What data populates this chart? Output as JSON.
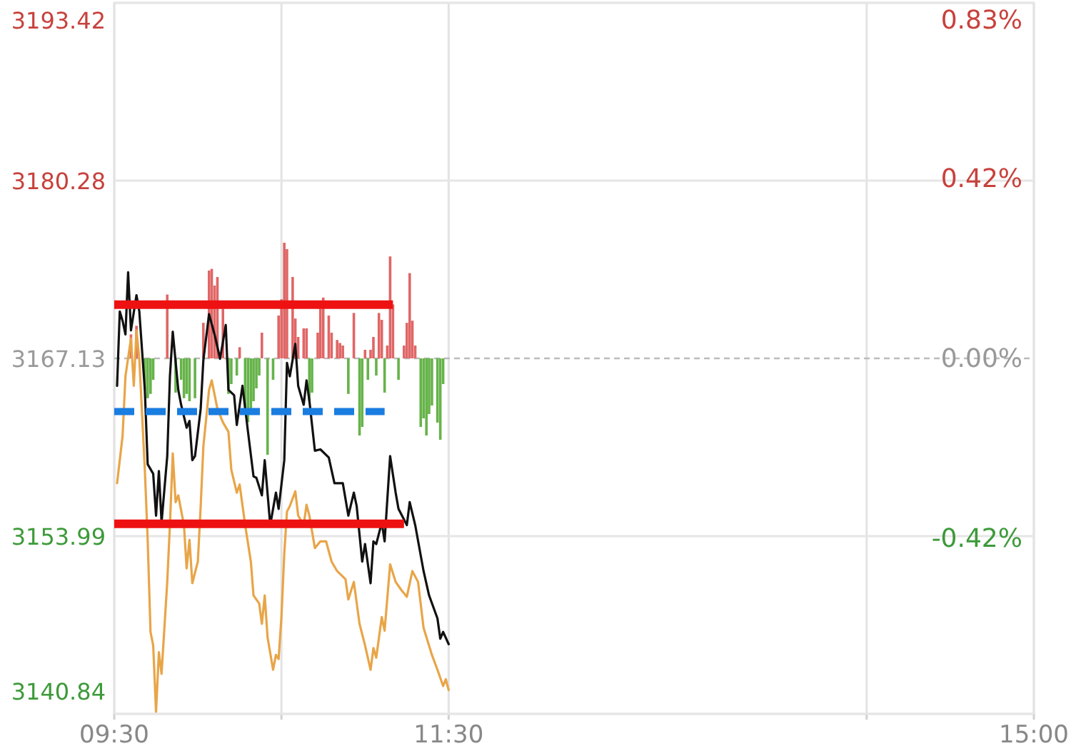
{
  "chart_data": {
    "type": "line",
    "xlim": [
      9.5,
      15
    ],
    "xticks": [
      {
        "value": 9.5,
        "label": "09:30"
      },
      {
        "value": 10.5,
        "label": null
      },
      {
        "value": 11.5,
        "label": "11:30"
      },
      {
        "value": 14,
        "label": null
      },
      {
        "value": 15,
        "label": "15:00"
      }
    ],
    "ylim": [
      3140.84,
      3193.42
    ],
    "yticks": [
      3140.84,
      3153.99,
      3167.13,
      3180.28,
      3193.42
    ],
    "y2lim": [
      -0.83,
      0.83
    ],
    "y2ticks": [
      {
        "value": -0.42,
        "label": "-0.42%"
      },
      {
        "value": 0,
        "label": "0.00%"
      },
      {
        "value": 0.42,
        "label": "0.42%"
      },
      {
        "value": 0.83,
        "label": "0.83%"
      }
    ],
    "grid": true,
    "ref_lines": [
      {
        "axis": "y2",
        "value": 0,
        "color": "#bbbbbb",
        "line_style": "dashed"
      }
    ],
    "series": [
      {
        "type": "bar",
        "axis": "y2",
        "x": [
          9.6,
          9.633,
          9.683,
          9.7,
          9.717,
          9.733,
          9.817,
          9.867,
          9.9,
          9.917,
          9.933,
          9.95,
          9.983,
          10.033,
          10.067,
          10.083,
          10.1,
          10.117,
          10.15,
          10.183,
          10.2,
          10.233,
          10.25,
          10.283,
          10.3,
          10.317,
          10.333,
          10.35,
          10.367,
          10.383,
          10.417,
          10.45,
          10.483,
          10.5,
          10.517,
          10.533,
          10.567,
          10.583,
          10.6,
          10.633,
          10.65,
          10.667,
          10.683,
          10.717,
          10.733,
          10.75,
          10.783,
          10.8,
          10.833,
          10.85,
          10.867,
          10.9,
          10.933,
          10.967,
          10.983,
          11,
          11.017,
          11.033,
          11.05,
          11.067,
          11.083,
          11.1,
          11.117,
          11.133,
          11.15,
          11.167,
          11.2,
          11.233,
          11.25,
          11.267,
          11.283,
          11.3,
          11.333,
          11.35,
          11.367,
          11.383,
          11.4,
          11.433,
          11.45,
          11.467
        ],
        "values": [
          0.056,
          0.076,
          -0.073,
          -0.093,
          -0.083,
          -0.05,
          0.149,
          -0.08,
          -0.05,
          -0.093,
          -0.083,
          -0.1,
          -0.093,
          0.083,
          0.205,
          0.209,
          0.17,
          0.19,
          0.116,
          -0.083,
          -0.06,
          -0.04,
          0.026,
          -0.116,
          -0.149,
          -0.126,
          -0.1,
          -0.07,
          -0.04,
          0.06,
          -0.225,
          -0.05,
          0.1,
          0.138,
          0.27,
          0.255,
          0.19,
          0.093,
          0.05,
          0.07,
          0.07,
          -0.1,
          -0.08,
          0.06,
          0.116,
          0.142,
          0.1,
          0.06,
          0.043,
          0.036,
          0.03,
          -0.083,
          0.106,
          -0.18,
          -0.16,
          0.02,
          -0.05,
          0.02,
          0.05,
          -0.04,
          0.106,
          0.09,
          -0.08,
          0.03,
          0.238,
          0.126,
          -0.05,
          0.03,
          0.083,
          0.199,
          0.088,
          0.03,
          -0.16,
          -0.14,
          -0.18,
          -0.13,
          -0.11,
          -0.15,
          -0.19,
          -0.06
        ],
        "colors": [
          "#e06666",
          "#e06666",
          "#66b34a",
          "#66b34a",
          "#66b34a",
          "#66b34a",
          "#e06666",
          "#66b34a",
          "#66b34a",
          "#66b34a",
          "#66b34a",
          "#66b34a",
          "#66b34a",
          "#e06666",
          "#e06666",
          "#e06666",
          "#e06666",
          "#e06666",
          "#e06666",
          "#66b34a",
          "#66b34a",
          "#66b34a",
          "#e06666",
          "#66b34a",
          "#66b34a",
          "#66b34a",
          "#66b34a",
          "#66b34a",
          "#66b34a",
          "#e06666",
          "#66b34a",
          "#66b34a",
          "#e06666",
          "#e06666",
          "#e06666",
          "#e06666",
          "#e06666",
          "#e06666",
          "#e06666",
          "#e06666",
          "#e06666",
          "#66b34a",
          "#66b34a",
          "#e06666",
          "#e06666",
          "#e06666",
          "#e06666",
          "#e06666",
          "#e06666",
          "#e06666",
          "#e06666",
          "#66b34a",
          "#e06666",
          "#66b34a",
          "#66b34a",
          "#e06666",
          "#66b34a",
          "#e06666",
          "#e06666",
          "#66b34a",
          "#e06666",
          "#e06666",
          "#66b34a",
          "#e06666",
          "#e06666",
          "#e06666",
          "#66b34a",
          "#e06666",
          "#e06666",
          "#e06666",
          "#e06666",
          "#e06666",
          "#66b34a",
          "#66b34a",
          "#66b34a",
          "#66b34a",
          "#66b34a",
          "#66b34a",
          "#66b34a",
          "#66b34a"
        ]
      },
      {
        "color": "#e8a548",
        "x": [
          9.517,
          9.55,
          9.567,
          9.6,
          9.617,
          9.633,
          9.65,
          9.683,
          9.7,
          9.717,
          9.733,
          9.75,
          9.767,
          9.783,
          9.817,
          9.833,
          9.85,
          9.867,
          9.883,
          9.917,
          9.933,
          9.95,
          9.967,
          10,
          10.017,
          10.033,
          10.067,
          10.083,
          10.117,
          10.15,
          10.183,
          10.2,
          10.233,
          10.25,
          10.283,
          10.317,
          10.333,
          10.367,
          10.383,
          10.4,
          10.417,
          10.45,
          10.467,
          10.483,
          10.5,
          10.517,
          10.533,
          10.55,
          10.583,
          10.6,
          10.633,
          10.65,
          10.667,
          10.7,
          10.733,
          10.767,
          10.8,
          10.833,
          10.883,
          10.9,
          10.933,
          10.967,
          11,
          11.033,
          11.05,
          11.067,
          11.1,
          11.117,
          11.15,
          11.183,
          11.217,
          11.25,
          11.283,
          11.317,
          11.35,
          11.4,
          11.433,
          11.467,
          11.483,
          11.5
        ],
        "values": [
          3157.9,
          3161.4,
          3165.8,
          3168.6,
          3165.1,
          3169.2,
          3167.1,
          3158.9,
          3153.7,
          3146.9,
          3145.9,
          3141.0,
          3145.4,
          3143.8,
          3150.6,
          3154.8,
          3160.1,
          3156.5,
          3157.0,
          3154.8,
          3151.6,
          3153.7,
          3150.5,
          3152.1,
          3156.2,
          3160.6,
          3164.8,
          3165.5,
          3163.4,
          3162.4,
          3161.7,
          3158.9,
          3157.2,
          3157.8,
          3154.8,
          3152.1,
          3149.6,
          3149.0,
          3147.5,
          3149.6,
          3146.5,
          3144.1,
          3145.2,
          3144.9,
          3148.0,
          3152.7,
          3155.8,
          3156.2,
          3157.3,
          3155.5,
          3154.8,
          3156.3,
          3155.5,
          3153.1,
          3153.6,
          3153.6,
          3152.1,
          3151.4,
          3150.8,
          3149.3,
          3150.6,
          3147.5,
          3145.9,
          3144.1,
          3145.7,
          3145.0,
          3148.0,
          3147.0,
          3151.9,
          3150.6,
          3150.0,
          3149.5,
          3151.4,
          3150.6,
          3147.2,
          3145.2,
          3144.1,
          3142.9,
          3143.4,
          3142.6
        ]
      },
      {
        "color": "#111111",
        "x": [
          9.517,
          9.533,
          9.55,
          9.567,
          9.583,
          9.6,
          9.633,
          9.65,
          9.683,
          9.7,
          9.733,
          9.75,
          9.767,
          9.783,
          9.817,
          9.833,
          9.85,
          9.883,
          9.9,
          9.933,
          9.95,
          9.967,
          9.983,
          10.017,
          10.033,
          10.067,
          10.1,
          10.133,
          10.167,
          10.183,
          10.217,
          10.233,
          10.267,
          10.3,
          10.333,
          10.35,
          10.383,
          10.4,
          10.433,
          10.467,
          10.483,
          10.517,
          10.533,
          10.55,
          10.583,
          10.6,
          10.633,
          10.65,
          10.667,
          10.7,
          10.733,
          10.783,
          10.817,
          10.867,
          10.9,
          10.933,
          10.95,
          10.983,
          11,
          11.033,
          11.05,
          11.067,
          11.1,
          11.117,
          11.15,
          11.183,
          11.2,
          11.25,
          11.267,
          11.3,
          11.35,
          11.383,
          11.433,
          11.45,
          11.467,
          11.5
        ],
        "values": [
          3165.1,
          3170.6,
          3169.9,
          3168.9,
          3173.5,
          3169.2,
          3171.8,
          3170.6,
          3164.8,
          3159.3,
          3158.6,
          3155.5,
          3158.8,
          3155.0,
          3159.9,
          3165.8,
          3169.1,
          3164.8,
          3163.7,
          3162.0,
          3162.5,
          3159.6,
          3159.9,
          3163.4,
          3167.0,
          3170.4,
          3168.9,
          3167.1,
          3169.6,
          3164.8,
          3164.4,
          3162.2,
          3165.1,
          3161.7,
          3158.4,
          3158.3,
          3157.0,
          3159.6,
          3154.8,
          3157.2,
          3156.0,
          3159.6,
          3166.8,
          3165.8,
          3168.2,
          3165.1,
          3163.7,
          3165.5,
          3164.0,
          3160.3,
          3160.4,
          3159.8,
          3157.9,
          3157.9,
          3155.5,
          3157.2,
          3156.2,
          3152.1,
          3153.4,
          3150.5,
          3153.6,
          3153.4,
          3155.0,
          3153.6,
          3159.9,
          3157.2,
          3156.0,
          3154.8,
          3156.5,
          3154.8,
          3151.4,
          3149.6,
          3147.9,
          3146.4,
          3146.9,
          3146.0
        ]
      },
      {
        "color": "#ee1111",
        "x": [
          9.5,
          11.167
        ],
        "values": [
          3171.1,
          3171.1
        ]
      },
      {
        "color": "#ee1111",
        "x": [
          9.5,
          11.233
        ],
        "values": [
          3154.9,
          3154.9
        ]
      },
      {
        "color": "#1a7de0",
        "line_style": "dashed",
        "x": [
          9.5,
          11.117
        ],
        "values": [
          3163.2,
          3163.2
        ]
      }
    ]
  }
}
